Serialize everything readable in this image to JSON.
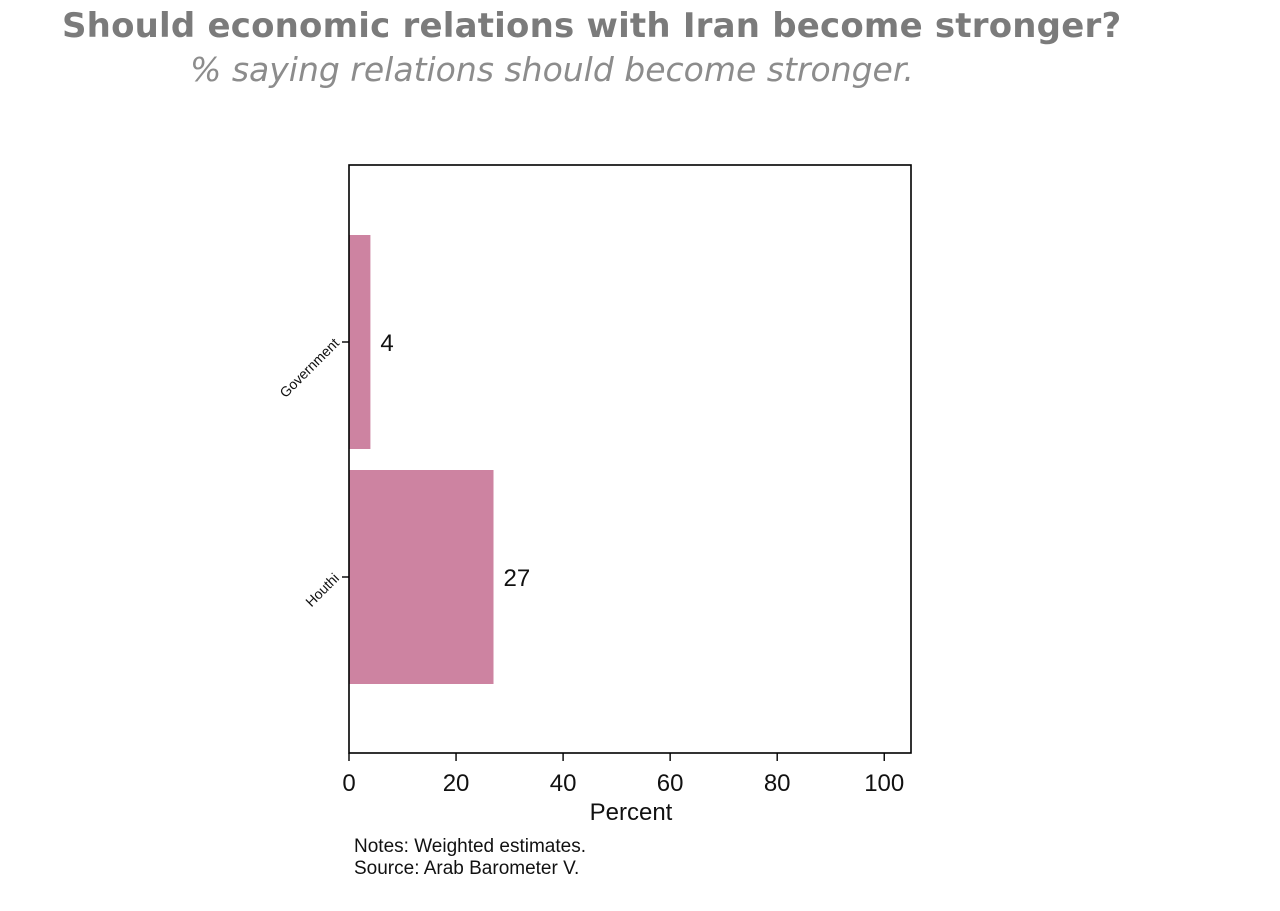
{
  "header": {
    "title": "Should economic relations with Iran become stronger?",
    "subtitle": "% saying relations should become stronger."
  },
  "notes": {
    "line1": "Notes: Weighted estimates.",
    "line2": "Source: Arab Barometer V."
  },
  "colors": {
    "bar": "#cd83a1",
    "title": "#7b7b7b",
    "subtitle": "#8c8c8c"
  },
  "chart_data": {
    "type": "bar",
    "orientation": "horizontal",
    "title": "Should economic relations with Iran become stronger?",
    "subtitle": "% saying relations should become stronger.",
    "categories": [
      "Government",
      "Houthi"
    ],
    "values": [
      4,
      27
    ],
    "data_labels": [
      "4",
      "27"
    ],
    "xlabel": "Percent",
    "ylabel": "",
    "xlim": [
      0,
      105
    ],
    "xticks": [
      0,
      20,
      40,
      60,
      80,
      100
    ],
    "grid": false,
    "legend": "none"
  }
}
